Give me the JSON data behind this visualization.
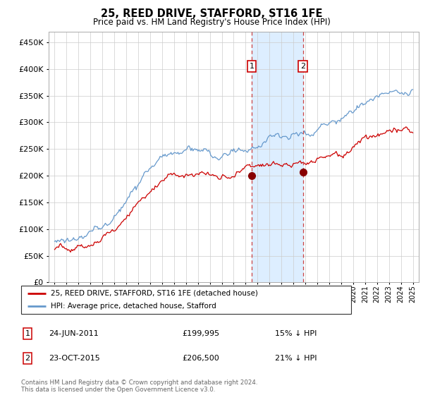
{
  "title": "25, REED DRIVE, STAFFORD, ST16 1FE",
  "subtitle": "Price paid vs. HM Land Registry's House Price Index (HPI)",
  "legend_line1": "25, REED DRIVE, STAFFORD, ST16 1FE (detached house)",
  "legend_line2": "HPI: Average price, detached house, Stafford",
  "annotation1_date": "24-JUN-2011",
  "annotation1_price": "£199,995",
  "annotation1_hpi": "15% ↓ HPI",
  "annotation1_year": 2011.5,
  "annotation2_date": "23-OCT-2015",
  "annotation2_price": "£206,500",
  "annotation2_hpi": "21% ↓ HPI",
  "annotation2_year": 2015.8,
  "red_color": "#cc0000",
  "blue_color": "#6699cc",
  "shade_color": "#ddeeff",
  "annotation_box_color": "#cc0000",
  "footer": "Contains HM Land Registry data © Crown copyright and database right 2024.\nThis data is licensed under the Open Government Licence v3.0.",
  "ylim": [
    0,
    470000
  ],
  "yticks": [
    0,
    50000,
    100000,
    150000,
    200000,
    250000,
    300000,
    350000,
    400000,
    450000
  ],
  "xlim": [
    1994.5,
    2025.5
  ],
  "xticks": [
    1995,
    1996,
    1997,
    1998,
    1999,
    2000,
    2001,
    2002,
    2003,
    2004,
    2005,
    2006,
    2007,
    2008,
    2009,
    2010,
    2011,
    2012,
    2013,
    2014,
    2015,
    2016,
    2017,
    2018,
    2019,
    2020,
    2021,
    2022,
    2023,
    2024,
    2025
  ],
  "purchase_years": [
    2011.5,
    2015.8
  ],
  "purchase_prices": [
    199995,
    206500
  ]
}
